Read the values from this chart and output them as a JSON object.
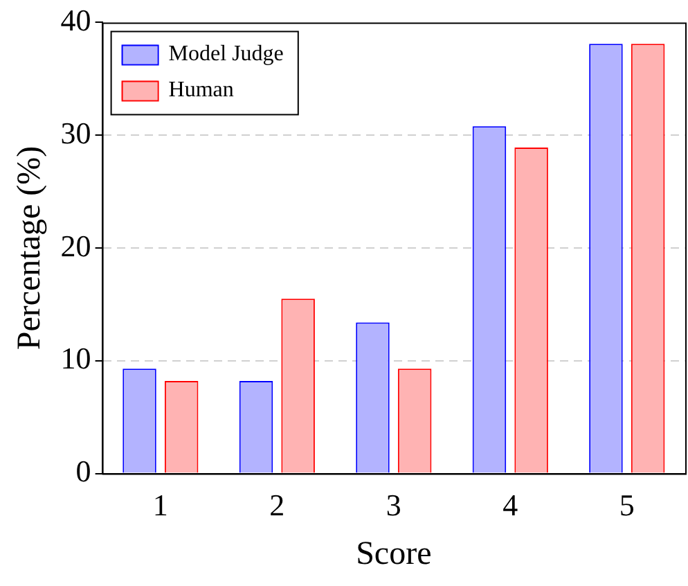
{
  "chart_data": {
    "type": "bar",
    "xlabel": "Score",
    "ylabel": "Percentage (%)",
    "categories": [
      "1",
      "2",
      "3",
      "4",
      "5"
    ],
    "series": [
      {
        "name": "Model Judge",
        "color": "#b3b3ff",
        "values": [
          9.3,
          8.2,
          13.4,
          30.8,
          38.1
        ]
      },
      {
        "name": "Human",
        "color": "#ffb3b3",
        "values": [
          8.2,
          15.5,
          9.3,
          28.9,
          38.1
        ]
      }
    ],
    "ylim": [
      0,
      40
    ],
    "yticks": [
      0,
      10,
      20,
      30,
      40
    ],
    "grid": "y",
    "legend": "top left"
  }
}
